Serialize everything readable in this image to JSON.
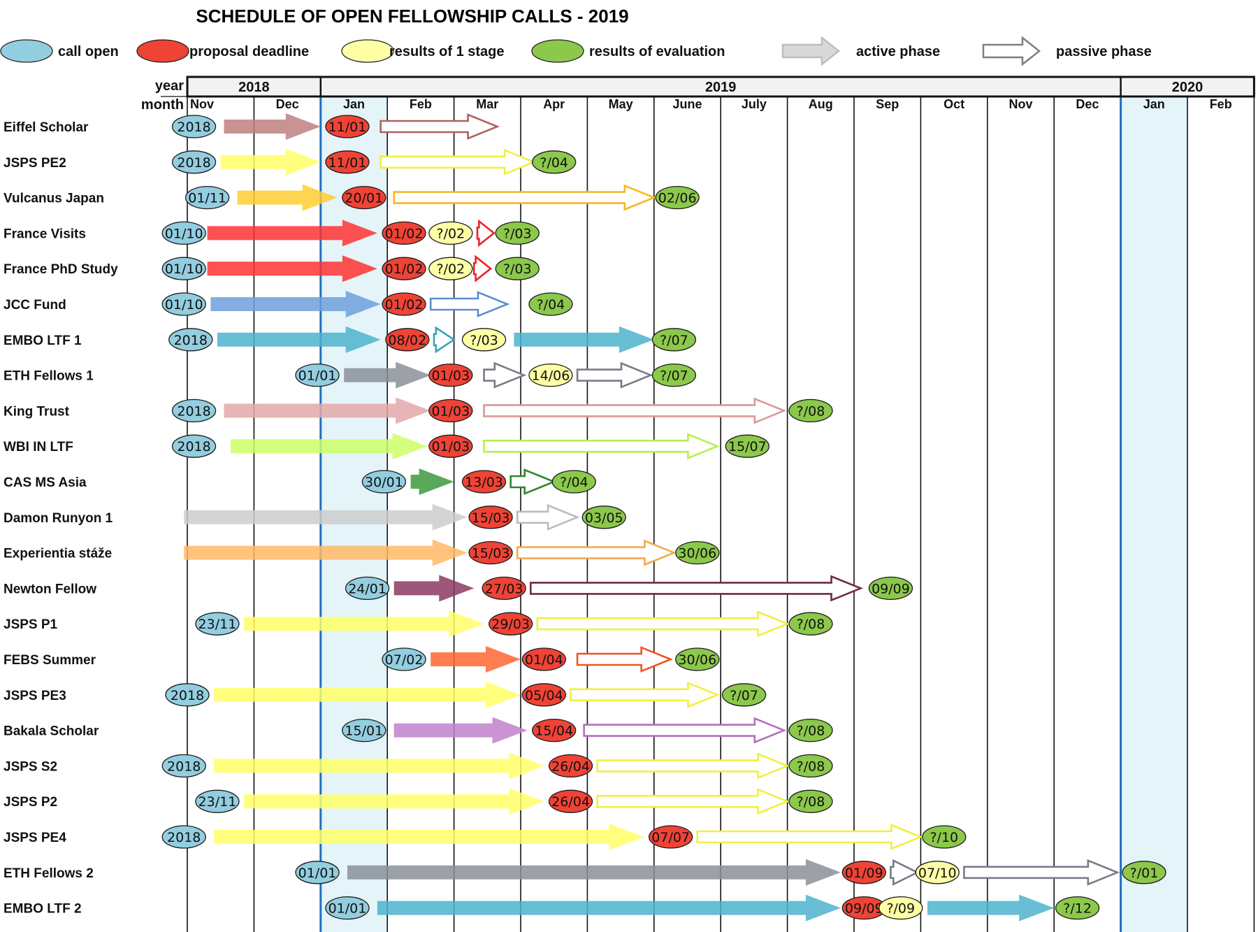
{
  "title": "SCHEDULE OF OPEN FELLOWSHIP CALLS - 2019",
  "legend": [
    {
      "label": "call open",
      "kind": "open"
    },
    {
      "label": "proposal deadline",
      "kind": "deadline"
    },
    {
      "label": "results of 1 stage",
      "kind": "stage1"
    },
    {
      "label": "results of  evaluation",
      "kind": "result"
    },
    {
      "label": "active phase",
      "kind": "active"
    },
    {
      "label": "passive phase",
      "kind": "passive"
    }
  ],
  "colors": {
    "open": "#93cde0",
    "deadline": "#ef4336",
    "stage1": "#ffffa6",
    "result": "#8cc84b",
    "highlight": "#e4f4f9",
    "year_line": "#1f6fbf",
    "legend_active": "#d9d9d9",
    "legend_passive": "#7f7f7f"
  },
  "header": {
    "year_label": "year",
    "month_label": "month",
    "years": [
      {
        "label": "2018",
        "from": 0,
        "to": 2
      },
      {
        "label": "2019",
        "from": 2,
        "to": 14
      },
      {
        "label": "2020",
        "from": 14,
        "to": 16
      }
    ],
    "months": [
      "Nov",
      "Dec",
      "Jan",
      "Feb",
      "Mar",
      "Apr",
      "May",
      "June",
      "July",
      "Aug",
      "Sep",
      "Oct",
      "Nov",
      "Dec",
      "Jan",
      "Feb"
    ]
  },
  "chart_data": {
    "type": "gantt",
    "timeline_unit": "month index (0 = Nov 2018, 15 = Feb 2020)",
    "highlighted_months": [
      2,
      14
    ],
    "rows": [
      {
        "name": "Eiffel Scholar",
        "color": "#c08080",
        "stroke": "#b06060",
        "items": [
          {
            "t": "open",
            "x": 0.1,
            "label": "2018"
          },
          {
            "t": "active",
            "x1": 0.55,
            "x2": 2.0
          },
          {
            "t": "deadline",
            "x": 2.4,
            "label": "11/01"
          },
          {
            "t": "passive",
            "x1": 2.9,
            "x2": 4.65
          }
        ]
      },
      {
        "name": "JSPS PE2",
        "color": "#ffff66",
        "stroke": "#f0f040",
        "items": [
          {
            "t": "open",
            "x": 0.1,
            "label": "2018"
          },
          {
            "t": "active",
            "x1": 0.5,
            "x2": 2.0
          },
          {
            "t": "deadline",
            "x": 2.4,
            "label": "11/01"
          },
          {
            "t": "passive",
            "x1": 2.9,
            "x2": 5.2
          },
          {
            "t": "result",
            "x": 5.5,
            "label": "?/04"
          }
        ]
      },
      {
        "name": "Vulcanus Japan",
        "color": "#ffcc33",
        "stroke": "#f5b820",
        "items": [
          {
            "t": "open",
            "x": 0.3,
            "label": "01/11"
          },
          {
            "t": "active",
            "x1": 0.75,
            "x2": 2.25
          },
          {
            "t": "deadline",
            "x": 2.65,
            "label": "20/01"
          },
          {
            "t": "passive",
            "x1": 3.1,
            "x2": 7.0
          },
          {
            "t": "result",
            "x": 7.35,
            "label": "02/06"
          }
        ]
      },
      {
        "name": "France Visits",
        "color": "#ff3333",
        "stroke": "#ee2222",
        "items": [
          {
            "t": "open",
            "x": -0.05,
            "label": "01/10"
          },
          {
            "t": "active",
            "x1": 0.3,
            "x2": 2.85
          },
          {
            "t": "deadline",
            "x": 3.25,
            "label": "01/02"
          },
          {
            "t": "stage1",
            "x": 3.95,
            "label": "?/02"
          },
          {
            "t": "passive",
            "x1": 4.35,
            "x2": 4.6
          },
          {
            "t": "result",
            "x": 4.95,
            "label": "?/03"
          }
        ]
      },
      {
        "name": "France PhD Study",
        "color": "#ff3333",
        "stroke": "#ee2222",
        "items": [
          {
            "t": "open",
            "x": -0.05,
            "label": "01/10"
          },
          {
            "t": "active",
            "x1": 0.3,
            "x2": 2.85
          },
          {
            "t": "deadline",
            "x": 3.25,
            "label": "01/02"
          },
          {
            "t": "stage1",
            "x": 3.95,
            "label": "?/02"
          },
          {
            "t": "passive",
            "x1": 4.3,
            "x2": 4.55
          },
          {
            "t": "result",
            "x": 4.95,
            "label": "?/03"
          }
        ]
      },
      {
        "name": "JCC Fund",
        "color": "#6fa0dc",
        "stroke": "#5b8fd0",
        "items": [
          {
            "t": "open",
            "x": -0.05,
            "label": "01/10"
          },
          {
            "t": "active",
            "x1": 0.35,
            "x2": 2.9
          },
          {
            "t": "deadline",
            "x": 3.25,
            "label": "01/02"
          },
          {
            "t": "passive",
            "x1": 3.65,
            "x2": 4.8
          },
          {
            "t": "result",
            "x": 5.45,
            "label": "?/04"
          }
        ]
      },
      {
        "name": "EMBO LTF 1",
        "color": "#4db3cc",
        "stroke": "#3aa0bb",
        "items": [
          {
            "t": "open",
            "x": 0.05,
            "label": "2018"
          },
          {
            "t": "active",
            "x1": 0.45,
            "x2": 2.9
          },
          {
            "t": "deadline",
            "x": 3.3,
            "label": "08/02"
          },
          {
            "t": "passive",
            "x1": 3.7,
            "x2": 4.0
          },
          {
            "t": "stage1",
            "x": 4.45,
            "label": "?/03"
          },
          {
            "t": "active",
            "x1": 4.9,
            "x2": 7.0
          },
          {
            "t": "result",
            "x": 7.3,
            "label": "?/07"
          }
        ]
      },
      {
        "name": "ETH Fellows 1",
        "color": "#8a8f9a",
        "stroke": "#777c88",
        "items": [
          {
            "t": "open",
            "x": 1.95,
            "label": "01/01"
          },
          {
            "t": "active",
            "x1": 2.35,
            "x2": 3.65
          },
          {
            "t": "deadline",
            "x": 3.95,
            "label": "01/03"
          },
          {
            "t": "passive",
            "x1": 4.45,
            "x2": 5.05
          },
          {
            "t": "stage1",
            "x": 5.45,
            "label": "14/06"
          },
          {
            "t": "passive",
            "x1": 5.85,
            "x2": 6.95
          },
          {
            "t": "result",
            "x": 7.3,
            "label": "?/07"
          }
        ]
      },
      {
        "name": "King Trust",
        "color": "#e3a8a8",
        "stroke": "#d89898",
        "items": [
          {
            "t": "open",
            "x": 0.1,
            "label": "2018"
          },
          {
            "t": "active",
            "x1": 0.55,
            "x2": 3.65
          },
          {
            "t": "deadline",
            "x": 3.95,
            "label": "01/03"
          },
          {
            "t": "passive",
            "x1": 4.45,
            "x2": 8.95
          },
          {
            "t": "result",
            "x": 9.35,
            "label": "?/08"
          }
        ]
      },
      {
        "name": "WBI IN LTF",
        "color": "#ccff66",
        "stroke": "#b8ee50",
        "items": [
          {
            "t": "open",
            "x": 0.1,
            "label": "2018"
          },
          {
            "t": "active",
            "x1": 0.65,
            "x2": 3.6
          },
          {
            "t": "deadline",
            "x": 3.95,
            "label": "01/03"
          },
          {
            "t": "passive",
            "x1": 4.45,
            "x2": 7.95
          },
          {
            "t": "result",
            "x": 8.4,
            "label": "15/07"
          }
        ]
      },
      {
        "name": "CAS MS Asia",
        "color": "#3c9a3c",
        "stroke": "#2e872e",
        "items": [
          {
            "t": "open",
            "x": 2.95,
            "label": "30/01"
          },
          {
            "t": "active",
            "x1": 3.35,
            "x2": 4.0
          },
          {
            "t": "deadline",
            "x": 4.45,
            "label": "13/03"
          },
          {
            "t": "passive",
            "x1": 4.85,
            "x2": 5.5
          },
          {
            "t": "result",
            "x": 5.8,
            "label": "?/04"
          }
        ]
      },
      {
        "name": "Damon Runyon 1",
        "color": "#cccccc",
        "stroke": "#bbbbbb",
        "items": [
          {
            "t": "active",
            "x1": -0.05,
            "x2": 4.2
          },
          {
            "t": "deadline",
            "x": 4.55,
            "label": "15/03"
          },
          {
            "t": "passive",
            "x1": 4.95,
            "x2": 5.85
          },
          {
            "t": "result",
            "x": 6.25,
            "label": "03/05"
          }
        ]
      },
      {
        "name": "Experientia stáže",
        "color": "#ffb866",
        "stroke": "#f5a850",
        "items": [
          {
            "t": "active",
            "x1": -0.05,
            "x2": 4.2
          },
          {
            "t": "deadline",
            "x": 4.55,
            "label": "15/03"
          },
          {
            "t": "passive",
            "x1": 4.95,
            "x2": 7.3
          },
          {
            "t": "result",
            "x": 7.65,
            "label": "30/06"
          }
        ]
      },
      {
        "name": "Newton Fellow",
        "color": "#8b3a62",
        "stroke": "#6d2a4a",
        "items": [
          {
            "t": "open",
            "x": 2.7,
            "label": "24/01"
          },
          {
            "t": "active",
            "x1": 3.1,
            "x2": 4.3
          },
          {
            "t": "deadline",
            "x": 4.75,
            "label": "27/03"
          },
          {
            "t": "passive",
            "x1": 5.15,
            "x2": 10.1
          },
          {
            "t": "result",
            "x": 10.55,
            "label": "09/09"
          }
        ]
      },
      {
        "name": "JSPS P1",
        "color": "#ffff66",
        "stroke": "#f0f040",
        "items": [
          {
            "t": "open",
            "x": 0.45,
            "label": "23/11"
          },
          {
            "t": "active",
            "x1": 0.85,
            "x2": 4.45
          },
          {
            "t": "deadline",
            "x": 4.85,
            "label": "29/03"
          },
          {
            "t": "passive",
            "x1": 5.25,
            "x2": 9.0
          },
          {
            "t": "result",
            "x": 9.35,
            "label": "?/08"
          }
        ]
      },
      {
        "name": "FEBS Summer",
        "color": "#ff6633",
        "stroke": "#ee5522",
        "items": [
          {
            "t": "open",
            "x": 3.25,
            "label": "07/02"
          },
          {
            "t": "active",
            "x1": 3.65,
            "x2": 5.0
          },
          {
            "t": "deadline",
            "x": 5.35,
            "label": "01/04"
          },
          {
            "t": "passive",
            "x1": 5.85,
            "x2": 7.25
          },
          {
            "t": "result",
            "x": 7.65,
            "label": "30/06"
          }
        ]
      },
      {
        "name": "JSPS PE3",
        "color": "#ffff66",
        "stroke": "#f0f040",
        "items": [
          {
            "t": "open",
            "x": 0.0,
            "label": "2018"
          },
          {
            "t": "active",
            "x1": 0.4,
            "x2": 5.0
          },
          {
            "t": "deadline",
            "x": 5.35,
            "label": "05/04"
          },
          {
            "t": "passive",
            "x1": 5.75,
            "x2": 7.95
          },
          {
            "t": "result",
            "x": 8.35,
            "label": "?/07"
          }
        ]
      },
      {
        "name": "Bakala Scholar",
        "color": "#c080cc",
        "stroke": "#b070bb",
        "items": [
          {
            "t": "open",
            "x": 2.65,
            "label": "15/01"
          },
          {
            "t": "active",
            "x1": 3.1,
            "x2": 5.1
          },
          {
            "t": "deadline",
            "x": 5.5,
            "label": "15/04"
          },
          {
            "t": "passive",
            "x1": 5.95,
            "x2": 8.95
          },
          {
            "t": "result",
            "x": 9.35,
            "label": "?/08"
          }
        ]
      },
      {
        "name": "JSPS S2",
        "color": "#ffff66",
        "stroke": "#f0f040",
        "items": [
          {
            "t": "open",
            "x": -0.05,
            "label": "2018"
          },
          {
            "t": "active",
            "x1": 0.4,
            "x2": 5.35
          },
          {
            "t": "deadline",
            "x": 5.75,
            "label": "26/04"
          },
          {
            "t": "passive",
            "x1": 6.15,
            "x2": 9.0
          },
          {
            "t": "result",
            "x": 9.35,
            "label": "?/08"
          }
        ]
      },
      {
        "name": "JSPS P2",
        "color": "#ffff66",
        "stroke": "#f0f040",
        "items": [
          {
            "t": "open",
            "x": 0.45,
            "label": "23/11"
          },
          {
            "t": "active",
            "x1": 0.85,
            "x2": 5.35
          },
          {
            "t": "deadline",
            "x": 5.75,
            "label": "26/04"
          },
          {
            "t": "passive",
            "x1": 6.15,
            "x2": 9.0
          },
          {
            "t": "result",
            "x": 9.35,
            "label": "?/08"
          }
        ]
      },
      {
        "name": "JSPS PE4",
        "color": "#ffff66",
        "stroke": "#f0f040",
        "items": [
          {
            "t": "open",
            "x": -0.05,
            "label": "2018"
          },
          {
            "t": "active",
            "x1": 0.4,
            "x2": 6.85
          },
          {
            "t": "deadline",
            "x": 7.25,
            "label": "07/07"
          },
          {
            "t": "passive",
            "x1": 7.65,
            "x2": 11.0
          },
          {
            "t": "result",
            "x": 11.35,
            "label": "?/10"
          }
        ]
      },
      {
        "name": "ETH Fellows 2",
        "color": "#8a8f9a",
        "stroke": "#777c88",
        "items": [
          {
            "t": "open",
            "x": 1.95,
            "label": "01/01"
          },
          {
            "t": "active",
            "x1": 2.4,
            "x2": 9.8
          },
          {
            "t": "deadline",
            "x": 10.15,
            "label": "01/09"
          },
          {
            "t": "passive",
            "x1": 10.55,
            "x2": 10.95
          },
          {
            "t": "stage1",
            "x": 11.25,
            "label": "07/10"
          },
          {
            "t": "passive",
            "x1": 11.65,
            "x2": 13.95
          },
          {
            "t": "result",
            "x": 14.35,
            "label": "?/01"
          }
        ]
      },
      {
        "name": "EMBO LTF 2",
        "color": "#4db3cc",
        "stroke": "#3aa0bb",
        "items": [
          {
            "t": "open",
            "x": 2.4,
            "label": "01/01"
          },
          {
            "t": "active",
            "x1": 2.85,
            "x2": 9.8
          },
          {
            "t": "deadline",
            "x": 10.15,
            "label": "09/09"
          },
          {
            "t": "stage1",
            "x": 10.7,
            "label": "?/09"
          },
          {
            "t": "active",
            "x1": 11.1,
            "x2": 13.0
          },
          {
            "t": "result",
            "x": 13.35,
            "label": "?/12"
          }
        ]
      }
    ]
  }
}
